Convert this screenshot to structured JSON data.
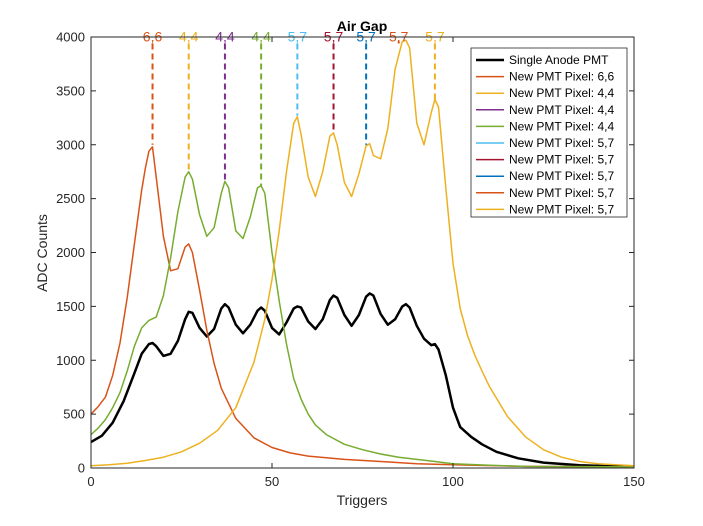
{
  "chart_data": {
    "type": "line",
    "title": "Air Gap",
    "xlabel": "Triggers",
    "ylabel": "ADC Counts",
    "xlim": [
      0,
      150
    ],
    "ylim": [
      0,
      4000
    ],
    "xticks": [
      0,
      50,
      100,
      150
    ],
    "yticks": [
      0,
      500,
      1000,
      1500,
      2000,
      2500,
      3000,
      3500,
      4000
    ],
    "grid": false,
    "legend_position": "top-right",
    "legend": [
      {
        "name": "Single Anode PMT",
        "color": "#000000",
        "width": 2.5
      },
      {
        "name": "New PMT Pixel: 6,6",
        "color": "#d95319",
        "width": 1.5
      },
      {
        "name": "New PMT Pixel: 4,4",
        "color": "#edb120",
        "width": 1.5
      },
      {
        "name": "New PMT Pixel: 4,4",
        "color": "#7e2f8e",
        "width": 1.5
      },
      {
        "name": "New PMT Pixel: 4,4",
        "color": "#77ac30",
        "width": 1.5
      },
      {
        "name": "New PMT Pixel: 5,7",
        "color": "#4dbeee",
        "width": 1.5
      },
      {
        "name": "New PMT Pixel: 5,7",
        "color": "#a2142f",
        "width": 1.5
      },
      {
        "name": "New PMT Pixel: 5,7",
        "color": "#0072bd",
        "width": 1.5
      },
      {
        "name": "New PMT Pixel: 5,7",
        "color": "#d95319",
        "width": 1.5
      },
      {
        "name": "New PMT Pixel: 5,7",
        "color": "#edb120",
        "width": 1.5
      }
    ],
    "series": [
      {
        "name": "Single Anode PMT",
        "color": "#000000",
        "width": 2.5,
        "x": [
          0,
          3,
          6,
          9,
          12,
          14,
          16,
          17,
          18,
          20,
          22,
          24,
          26,
          27,
          28,
          30,
          32,
          34,
          36,
          37,
          38,
          40,
          42,
          44,
          46,
          47,
          48,
          50,
          52,
          54,
          56,
          57,
          58,
          60,
          62,
          64,
          66,
          67,
          68,
          70,
          72,
          74,
          76,
          77,
          78,
          80,
          82,
          84,
          86,
          87,
          88,
          90,
          92,
          94,
          95,
          96,
          98,
          100,
          102,
          105,
          108,
          112,
          118,
          125,
          135,
          145,
          150
        ],
        "y": [
          240,
          300,
          420,
          620,
          880,
          1060,
          1150,
          1160,
          1130,
          1040,
          1060,
          1180,
          1380,
          1450,
          1440,
          1300,
          1220,
          1290,
          1480,
          1520,
          1490,
          1330,
          1250,
          1330,
          1460,
          1490,
          1460,
          1300,
          1240,
          1350,
          1480,
          1500,
          1490,
          1360,
          1290,
          1380,
          1560,
          1600,
          1580,
          1420,
          1320,
          1420,
          1590,
          1620,
          1600,
          1430,
          1330,
          1380,
          1500,
          1520,
          1490,
          1320,
          1200,
          1140,
          1150,
          1100,
          860,
          560,
          380,
          290,
          220,
          150,
          90,
          50,
          25,
          15,
          10
        ]
      },
      {
        "name": "New PMT Pixel: 6,6",
        "color": "#d95319",
        "width": 1.5,
        "x": [
          0,
          2,
          4,
          6,
          8,
          10,
          12,
          14,
          15,
          16,
          17,
          18,
          20,
          22,
          24,
          26,
          27,
          28,
          30,
          32,
          34,
          36,
          40,
          45,
          50,
          55,
          60,
          70,
          80,
          90,
          100,
          120,
          150
        ],
        "y": [
          500,
          570,
          660,
          860,
          1160,
          1580,
          2080,
          2580,
          2780,
          2940,
          2980,
          2700,
          2150,
          1830,
          1850,
          2050,
          2080,
          2000,
          1650,
          1280,
          970,
          740,
          460,
          280,
          190,
          140,
          110,
          80,
          60,
          40,
          30,
          15,
          10
        ]
      },
      {
        "name": "New PMT Pixel: 4,4",
        "color": "#77ac30",
        "width": 1.5,
        "x": [
          0,
          2,
          4,
          6,
          8,
          10,
          12,
          14,
          16,
          18,
          20,
          22,
          24,
          26,
          27,
          28,
          30,
          32,
          34,
          36,
          37,
          38,
          40,
          42,
          44,
          46,
          47,
          48,
          50,
          52,
          54,
          56,
          58,
          60,
          62,
          65,
          70,
          75,
          80,
          85,
          90,
          95,
          100,
          110,
          120,
          150
        ],
        "y": [
          310,
          370,
          450,
          560,
          700,
          900,
          1130,
          1300,
          1370,
          1400,
          1600,
          1950,
          2380,
          2700,
          2750,
          2680,
          2350,
          2150,
          2230,
          2550,
          2660,
          2600,
          2200,
          2130,
          2330,
          2600,
          2620,
          2550,
          2000,
          1550,
          1150,
          830,
          640,
          500,
          400,
          310,
          220,
          170,
          130,
          100,
          80,
          60,
          40,
          25,
          15,
          10
        ]
      },
      {
        "name": "New PMT Pixel: 5,7",
        "color": "#edb120",
        "width": 1.5,
        "x": [
          0,
          5,
          10,
          15,
          20,
          25,
          30,
          35,
          40,
          45,
          48,
          50,
          52,
          54,
          56,
          57,
          58,
          60,
          62,
          64,
          66,
          67,
          68,
          70,
          72,
          74,
          76,
          77,
          78,
          80,
          82,
          84,
          86,
          87,
          88,
          90,
          92,
          94,
          95,
          96,
          98,
          100,
          102,
          104,
          106,
          108,
          110,
          115,
          120,
          125,
          130,
          135,
          140,
          150
        ],
        "y": [
          20,
          30,
          45,
          70,
          100,
          150,
          230,
          350,
          560,
          980,
          1380,
          1750,
          2200,
          2750,
          3200,
          3260,
          3100,
          2700,
          2520,
          2750,
          3080,
          3110,
          3000,
          2650,
          2520,
          2730,
          2990,
          3010,
          2900,
          2870,
          3150,
          3700,
          3960,
          3970,
          3900,
          3200,
          3000,
          3300,
          3420,
          3350,
          2600,
          1900,
          1480,
          1230,
          1050,
          900,
          760,
          480,
          290,
          170,
          100,
          60,
          40,
          20
        ]
      }
    ],
    "annotations": [
      {
        "label": "6,6",
        "x": 17,
        "y_top": 3940,
        "y_bottom": 3000,
        "color": "#d95319"
      },
      {
        "label": "4,4",
        "x": 27,
        "y_top": 3940,
        "y_bottom": 2760,
        "color": "#edb120"
      },
      {
        "label": "4,4",
        "x": 37,
        "y_top": 3940,
        "y_bottom": 2670,
        "color": "#7e2f8e"
      },
      {
        "label": "4,4",
        "x": 47,
        "y_top": 3940,
        "y_bottom": 2620,
        "color": "#77ac30"
      },
      {
        "label": "5,7",
        "x": 57,
        "y_top": 3940,
        "y_bottom": 3270,
        "color": "#4dbeee"
      },
      {
        "label": "5,7",
        "x": 67,
        "y_top": 3940,
        "y_bottom": 3110,
        "color": "#a2142f"
      },
      {
        "label": "5,7",
        "x": 76,
        "y_top": 3940,
        "y_bottom": 3000,
        "color": "#0072bd"
      },
      {
        "label": "5,7",
        "x": 85,
        "y_top": 3940,
        "y_bottom": 3960,
        "color": "#d95319"
      },
      {
        "label": "5,7",
        "x": 95,
        "y_top": 3940,
        "y_bottom": 3420,
        "color": "#edb120"
      }
    ]
  }
}
